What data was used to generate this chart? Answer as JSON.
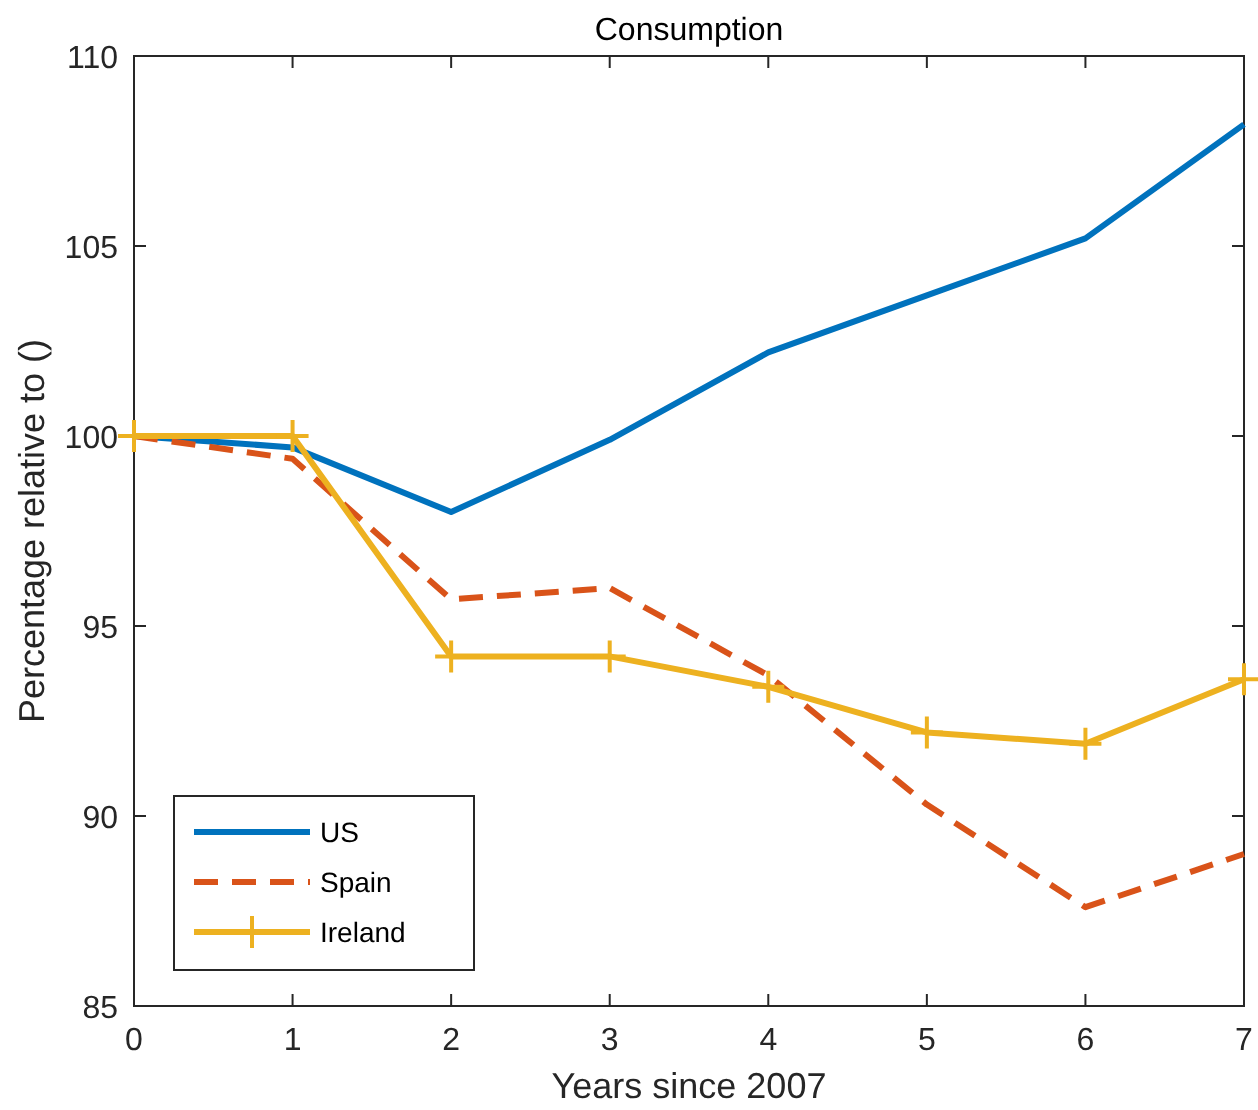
{
  "chart_data": {
    "type": "line",
    "title": "Consumption",
    "xlabel": "Years since 2007",
    "ylabel": "Percentage relative to ()",
    "x": [
      0,
      1,
      2,
      3,
      4,
      5,
      6,
      7
    ],
    "series": [
      {
        "name": "US",
        "color": "#0072bd",
        "line_style": "solid",
        "marker": "none",
        "values": [
          100,
          99.7,
          98.0,
          99.9,
          102.2,
          103.7,
          105.2,
          108.2
        ]
      },
      {
        "name": "Spain",
        "color": "#d95319",
        "line_style": "dashed",
        "marker": "none",
        "values": [
          100,
          99.4,
          95.7,
          96.0,
          93.7,
          90.3,
          87.6,
          89.0
        ]
      },
      {
        "name": "Ireland",
        "color": "#edb120",
        "line_style": "solid",
        "marker": "cross",
        "values": [
          100,
          100,
          94.2,
          94.2,
          93.4,
          92.2,
          91.9,
          93.6
        ]
      }
    ],
    "xlim": [
      0,
      7
    ],
    "xticks": [
      0,
      1,
      2,
      3,
      4,
      5,
      6,
      7
    ],
    "ylim": [
      85,
      110
    ],
    "yticks": [
      85,
      90,
      95,
      100,
      105,
      110
    ],
    "grid": false,
    "legend": "bottom left"
  }
}
